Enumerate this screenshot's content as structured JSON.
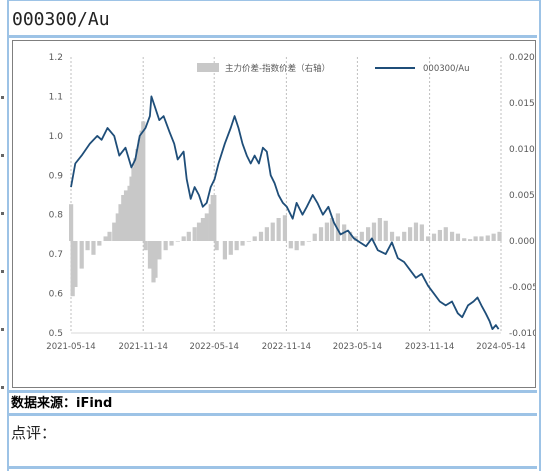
{
  "page": {
    "title": "000300/Au",
    "source": "数据来源：iFind",
    "comment": "点评："
  },
  "colors": {
    "frame": "#9dc3e6",
    "line_series": "#1f4e79",
    "bar_series": "#c8c8c8",
    "grid": "#bfbfbf",
    "axis_text": "#595959"
  },
  "chart_data": {
    "type": "line",
    "title": "",
    "xlabel": "",
    "ylabel": "",
    "x_ticks": [
      "2021-05-14",
      "2021-11-14",
      "2022-05-14",
      "2022-11-14",
      "2023-05-14",
      "2023-11-14",
      "2024-05-14"
    ],
    "x_range": [
      "2021-05-14",
      "2024-05-14"
    ],
    "y_left": {
      "ylim": [
        0.5,
        1.2
      ],
      "ticks": [
        "0.5",
        "0.6",
        "0.7",
        "0.8",
        "0.9",
        "1.0",
        "1.1",
        "1.2"
      ]
    },
    "y_right": {
      "ylim": [
        -0.01,
        0.02
      ],
      "ticks": [
        "-0.010",
        "-0.005",
        "0.000",
        "0.005",
        "0.010",
        "0.015",
        "0.020"
      ]
    },
    "grid": "vertical dashed lines at x ticks",
    "legend": {
      "placement": "top-right",
      "entries": [
        "主力价差-指数价差（右轴）",
        "000300/Au"
      ]
    },
    "series": [
      {
        "name": "000300/Au",
        "type": "line",
        "axis": "left",
        "points": [
          [
            "2021-05-14",
            0.87
          ],
          [
            "2021-05-25",
            0.93
          ],
          [
            "2021-06-10",
            0.95
          ],
          [
            "2021-07-01",
            0.98
          ],
          [
            "2021-07-20",
            1.0
          ],
          [
            "2021-07-31",
            0.99
          ],
          [
            "2021-08-15",
            1.02
          ],
          [
            "2021-09-01",
            1.0
          ],
          [
            "2021-09-14",
            0.95
          ],
          [
            "2021-09-30",
            0.97
          ],
          [
            "2021-10-15",
            0.92
          ],
          [
            "2021-10-25",
            0.94
          ],
          [
            "2021-11-05",
            1.0
          ],
          [
            "2021-11-20",
            1.02
          ],
          [
            "2021-12-01",
            1.05
          ],
          [
            "2021-12-05",
            1.1
          ],
          [
            "2021-12-15",
            1.07
          ],
          [
            "2021-12-25",
            1.04
          ],
          [
            "2022-01-05",
            1.05
          ],
          [
            "2022-01-20",
            1.01
          ],
          [
            "2022-02-01",
            0.98
          ],
          [
            "2022-02-10",
            0.94
          ],
          [
            "2022-02-25",
            0.96
          ],
          [
            "2022-03-05",
            0.89
          ],
          [
            "2022-03-15",
            0.84
          ],
          [
            "2022-03-25",
            0.87
          ],
          [
            "2022-04-05",
            0.85
          ],
          [
            "2022-04-15",
            0.82
          ],
          [
            "2022-04-25",
            0.83
          ],
          [
            "2022-05-05",
            0.87
          ],
          [
            "2022-05-15",
            0.89
          ],
          [
            "2022-05-25",
            0.93
          ],
          [
            "2022-06-10",
            0.98
          ],
          [
            "2022-06-25",
            1.02
          ],
          [
            "2022-07-05",
            1.05
          ],
          [
            "2022-07-15",
            1.02
          ],
          [
            "2022-07-25",
            0.98
          ],
          [
            "2022-08-05",
            0.95
          ],
          [
            "2022-08-15",
            0.93
          ],
          [
            "2022-08-25",
            0.95
          ],
          [
            "2022-09-05",
            0.93
          ],
          [
            "2022-09-15",
            0.97
          ],
          [
            "2022-09-25",
            0.96
          ],
          [
            "2022-10-05",
            0.9
          ],
          [
            "2022-10-15",
            0.88
          ],
          [
            "2022-10-25",
            0.85
          ],
          [
            "2022-11-05",
            0.83
          ],
          [
            "2022-11-15",
            0.82
          ],
          [
            "2022-11-30",
            0.79
          ],
          [
            "2022-12-10",
            0.83
          ],
          [
            "2022-12-25",
            0.8
          ],
          [
            "2023-01-05",
            0.82
          ],
          [
            "2023-01-20",
            0.85
          ],
          [
            "2023-02-01",
            0.83
          ],
          [
            "2023-02-15",
            0.8
          ],
          [
            "2023-03-01",
            0.82
          ],
          [
            "2023-03-15",
            0.78
          ],
          [
            "2023-04-01",
            0.75
          ],
          [
            "2023-04-20",
            0.76
          ],
          [
            "2023-05-05",
            0.74
          ],
          [
            "2023-05-20",
            0.73
          ],
          [
            "2023-06-05",
            0.72
          ],
          [
            "2023-06-20",
            0.74
          ],
          [
            "2023-07-05",
            0.71
          ],
          [
            "2023-07-25",
            0.7
          ],
          [
            "2023-08-10",
            0.73
          ],
          [
            "2023-08-25",
            0.69
          ],
          [
            "2023-09-10",
            0.68
          ],
          [
            "2023-09-25",
            0.66
          ],
          [
            "2023-10-10",
            0.64
          ],
          [
            "2023-10-25",
            0.65
          ],
          [
            "2023-11-10",
            0.62
          ],
          [
            "2023-11-25",
            0.6
          ],
          [
            "2023-12-10",
            0.58
          ],
          [
            "2023-12-25",
            0.57
          ],
          [
            "2024-01-10",
            0.58
          ],
          [
            "2024-01-25",
            0.55
          ],
          [
            "2024-02-05",
            0.54
          ],
          [
            "2024-02-20",
            0.57
          ],
          [
            "2024-03-05",
            0.58
          ],
          [
            "2024-03-15",
            0.59
          ],
          [
            "2024-03-25",
            0.57
          ],
          [
            "2024-04-05",
            0.55
          ],
          [
            "2024-04-15",
            0.53
          ],
          [
            "2024-04-22",
            0.51
          ],
          [
            "2024-05-01",
            0.52
          ],
          [
            "2024-05-08",
            0.51
          ]
        ]
      },
      {
        "name": "主力价差-指数价差（右轴）",
        "type": "bar",
        "axis": "right",
        "points": [
          [
            "2021-05-14",
            0.004
          ],
          [
            "2021-05-18",
            -0.006
          ],
          [
            "2021-05-25",
            -0.005
          ],
          [
            "2021-06-10",
            -0.003
          ],
          [
            "2021-06-25",
            -0.001
          ],
          [
            "2021-07-10",
            -0.0015
          ],
          [
            "2021-07-25",
            -0.0005
          ],
          [
            "2021-08-10",
            0.0005
          ],
          [
            "2021-08-20",
            0.001
          ],
          [
            "2021-09-01",
            0.002
          ],
          [
            "2021-09-10",
            0.003
          ],
          [
            "2021-09-17",
            0.004
          ],
          [
            "2021-09-24",
            0.005
          ],
          [
            "2021-10-01",
            0.0055
          ],
          [
            "2021-10-10",
            0.006
          ],
          [
            "2021-10-15",
            0.007
          ],
          [
            "2021-10-20",
            0.008
          ],
          [
            "2021-10-25",
            0.009
          ],
          [
            "2021-10-30",
            0.01
          ],
          [
            "2021-11-05",
            0.011
          ],
          [
            "2021-11-10",
            0.012
          ],
          [
            "2021-11-14",
            0.013
          ],
          [
            "2021-11-20",
            -0.001
          ],
          [
            "2021-12-01",
            -0.003
          ],
          [
            "2021-12-10",
            -0.0045
          ],
          [
            "2021-12-15",
            -0.004
          ],
          [
            "2021-12-25",
            -0.002
          ],
          [
            "2022-01-10",
            -0.001
          ],
          [
            "2022-01-25",
            -0.0005
          ],
          [
            "2022-02-10",
            0.0
          ],
          [
            "2022-02-25",
            0.0005
          ],
          [
            "2022-03-10",
            0.001
          ],
          [
            "2022-03-25",
            0.0015
          ],
          [
            "2022-04-05",
            0.002
          ],
          [
            "2022-04-15",
            0.0025
          ],
          [
            "2022-04-25",
            0.003
          ],
          [
            "2022-05-05",
            0.004
          ],
          [
            "2022-05-10",
            0.005
          ],
          [
            "2022-05-14",
            0.005
          ],
          [
            "2022-05-20",
            -0.001
          ],
          [
            "2022-06-10",
            -0.002
          ],
          [
            "2022-06-25",
            -0.0015
          ],
          [
            "2022-07-10",
            -0.001
          ],
          [
            "2022-07-25",
            -0.0005
          ],
          [
            "2022-08-10",
            0.0
          ],
          [
            "2022-08-25",
            0.0005
          ],
          [
            "2022-09-10",
            0.001
          ],
          [
            "2022-09-25",
            0.0015
          ],
          [
            "2022-10-10",
            0.002
          ],
          [
            "2022-10-25",
            0.0025
          ],
          [
            "2022-11-10",
            0.0028
          ],
          [
            "2022-11-25",
            -0.0008
          ],
          [
            "2022-12-10",
            -0.001
          ],
          [
            "2022-12-25",
            -0.0005
          ],
          [
            "2023-01-10",
            0.0
          ],
          [
            "2023-01-25",
            0.0008
          ],
          [
            "2023-02-10",
            0.0015
          ],
          [
            "2023-02-25",
            0.002
          ],
          [
            "2023-03-10",
            0.0025
          ],
          [
            "2023-03-25",
            0.003
          ],
          [
            "2023-04-10",
            0.0018
          ],
          [
            "2023-04-25",
            0.001
          ],
          [
            "2023-05-10",
            0.0005
          ],
          [
            "2023-05-25",
            0.001
          ],
          [
            "2023-06-10",
            0.0015
          ],
          [
            "2023-06-25",
            0.002
          ],
          [
            "2023-07-10",
            0.0025
          ],
          [
            "2023-07-25",
            0.0022
          ],
          [
            "2023-08-10",
            0.001
          ],
          [
            "2023-08-25",
            0.0005
          ],
          [
            "2023-09-10",
            0.001
          ],
          [
            "2023-09-25",
            0.0015
          ],
          [
            "2023-10-10",
            0.002
          ],
          [
            "2023-10-25",
            0.0018
          ],
          [
            "2023-11-10",
            0.0005
          ],
          [
            "2023-11-25",
            0.0008
          ],
          [
            "2023-12-10",
            0.0012
          ],
          [
            "2023-12-25",
            0.0015
          ],
          [
            "2024-01-10",
            0.001
          ],
          [
            "2024-01-25",
            0.0008
          ],
          [
            "2024-02-10",
            0.0003
          ],
          [
            "2024-02-25",
            0.0002
          ],
          [
            "2024-03-10",
            0.0005
          ],
          [
            "2024-03-25",
            0.0005
          ],
          [
            "2024-04-10",
            0.0006
          ],
          [
            "2024-04-25",
            0.0008
          ],
          [
            "2024-05-10",
            0.001
          ]
        ]
      }
    ]
  }
}
